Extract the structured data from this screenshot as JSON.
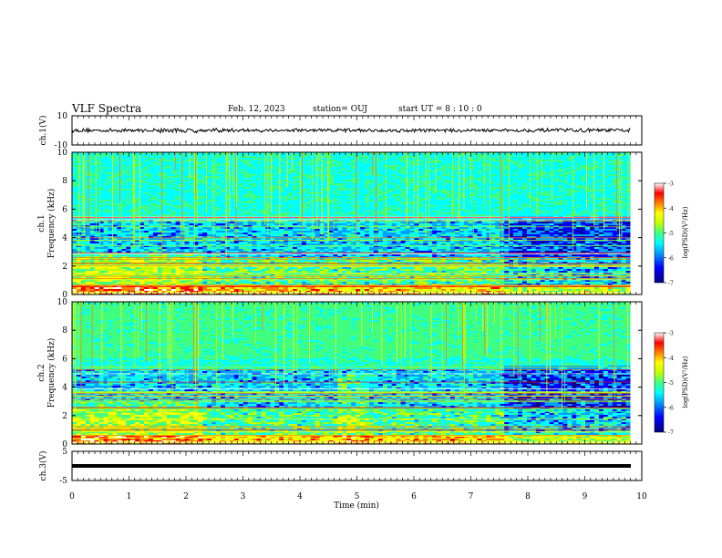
{
  "header": {
    "title": "VLF Spectra",
    "date": "Feb. 12, 2023",
    "station": "station= OUJ",
    "start": "start  UT =   8  : 10 : 0"
  },
  "chart_data": [
    {
      "type": "line",
      "panel": "ch1-waveform",
      "ylabel": "ch.1(V)",
      "ylim": [
        -10,
        10
      ],
      "ytick_labels": [
        "10",
        "-10"
      ],
      "xlim": [
        0,
        10
      ],
      "description_values": {
        "baseline_V": 0,
        "amplitude_V": 1.2
      },
      "color": "#000000"
    },
    {
      "type": "heatmap",
      "panel": "ch1-spectrogram",
      "ylabel": "ch.1\nFrequency (kHz)",
      "ylim": [
        0,
        10
      ],
      "ytick_labels": [
        "0",
        "2",
        "4",
        "6",
        "8",
        "10"
      ],
      "xlim": [
        0,
        10
      ],
      "colorbar": {
        "label": "log(PSD)(V²/Hz)",
        "range": [
          -7,
          -3
        ],
        "tick_labels": [
          "-3",
          "-4",
          "-5",
          "-6",
          "-7"
        ]
      }
    },
    {
      "type": "heatmap",
      "panel": "ch2-spectrogram",
      "ylabel": "ch.2\nFrequency (kHz)",
      "ylim": [
        0,
        10
      ],
      "ytick_labels": [
        "0",
        "2",
        "4",
        "6",
        "8",
        "10"
      ],
      "xlim": [
        0,
        10
      ],
      "colorbar": {
        "label": "log(PSD)(V²/Hz)",
        "range": [
          -7,
          -3
        ],
        "tick_labels": [
          "-3",
          "-4",
          "-5",
          "-6",
          "-7"
        ]
      }
    },
    {
      "type": "line",
      "panel": "ch3-waveform",
      "ylabel": "ch.3(V)",
      "ylim": [
        -5,
        5
      ],
      "ytick_labels": [
        "5",
        "-5"
      ],
      "xlim": [
        0,
        10
      ],
      "description_values": {
        "level_V": -1.2
      },
      "color": "#000000"
    }
  ],
  "xaxis": {
    "label": "Time (min)",
    "tick_labels": [
      "0",
      "1",
      "2",
      "3",
      "4",
      "5",
      "6",
      "7",
      "8",
      "9",
      "10"
    ],
    "data_end_min": 9.8
  },
  "colormap": [
    "#000080",
    "#0000ff",
    "#00a0ff",
    "#00ffff",
    "#40ff80",
    "#c0ff00",
    "#ffff00",
    "#ff8000",
    "#ff0000",
    "#ffffff"
  ]
}
